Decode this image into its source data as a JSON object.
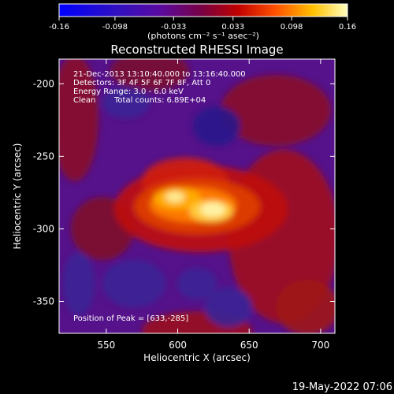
{
  "colorbar": {
    "ticks": [
      "-0.16",
      "-0.098",
      "-0.033",
      "0.033",
      "0.098",
      "0.16"
    ],
    "unit": "(photons cm⁻² s⁻¹ asec⁻²)",
    "min": -0.16,
    "max": 0.16
  },
  "chart_data": {
    "type": "heatmap",
    "title": "Reconstructed RHESSI Image",
    "xlabel": "Heliocentric X (arcsec)",
    "ylabel": "Heliocentric Y (arcsec)",
    "xlim": [
      517,
      710
    ],
    "ylim": [
      -372,
      -183
    ],
    "xticks": [
      550,
      600,
      650,
      700
    ],
    "yticks": [
      -200,
      -250,
      -300,
      -350
    ],
    "info_lines": [
      "21-Dec-2013 13:10:40.000 to 13:16:40.000",
      "Detectors: 3F 4F 5F 6F 7F 8F, Att 0",
      "Energy Range: 3.0 - 6.0 keV"
    ],
    "method": "Clean",
    "total_counts": "Total counts: 6.89E+04",
    "peak_label": "Position of Peak = [633,-285]",
    "peak": [
      633,
      -285
    ],
    "colors": {
      "low": "#2a1a8c",
      "mid": "#7a0a2a",
      "high": "#fff6b0"
    }
  },
  "footer": {
    "timestamp": "19-May-2022 07:06"
  }
}
